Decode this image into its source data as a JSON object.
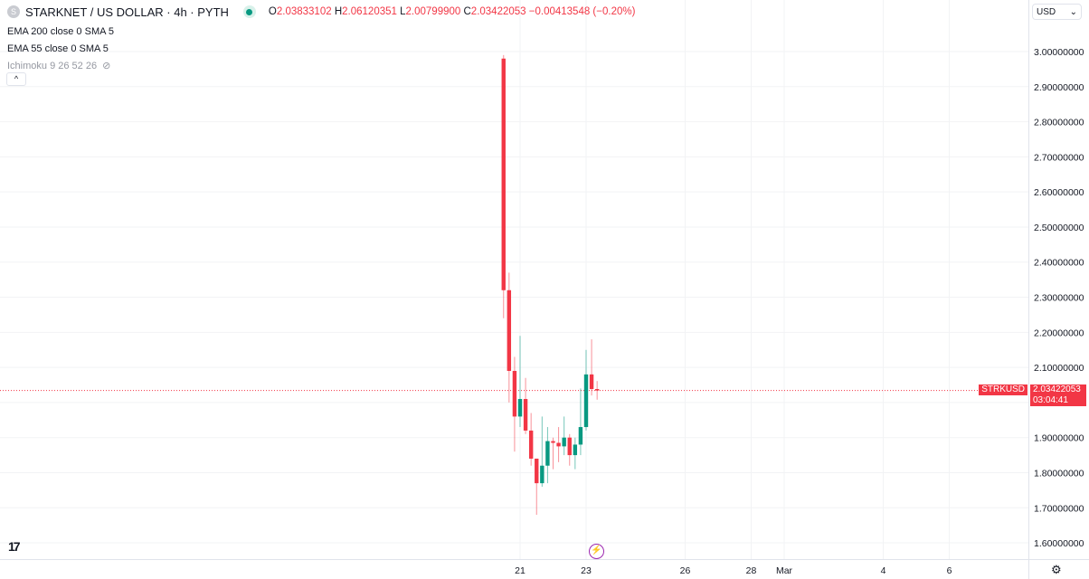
{
  "header": {
    "symbol_icon": "S",
    "title": "STARKNET / US DOLLAR · 4h · PYTH",
    "market_status": "open",
    "open_label": "O",
    "open": "2.03833102",
    "high_label": "H",
    "high": "2.06120351",
    "low_label": "L",
    "low": "2.00799900",
    "close_label": "C",
    "close": "2.03422053",
    "change": "−0.00413548 (−0.20%)"
  },
  "indicators": [
    "EMA 200 close 0 SMA 5",
    "EMA 55 close 0 SMA 5",
    "Ichimoku 9 26 52 26"
  ],
  "currency": "USD",
  "price_tag": {
    "symbol": "STRKUSD",
    "price": "2.03422053",
    "countdown": "03:04:41"
  },
  "colors": {
    "up": "#089981",
    "down": "#f23645",
    "accent": "#9c27b0"
  },
  "chart_data": {
    "type": "candlestick",
    "interval": "4h",
    "ylim": [
      1.55,
      3.05
    ],
    "y_ticks": [
      "3.00000000",
      "2.90000000",
      "2.80000000",
      "2.70000000",
      "2.60000000",
      "2.50000000",
      "2.40000000",
      "2.30000000",
      "2.20000000",
      "2.10000000",
      "2.00000000",
      "1.90000000",
      "1.80000000",
      "1.70000000",
      "1.60000000"
    ],
    "x_ticks": [
      {
        "label": "21",
        "day": 21
      },
      {
        "label": "23",
        "day": 23
      },
      {
        "label": "26",
        "day": 26
      },
      {
        "label": "28",
        "day": 28
      },
      {
        "label": "Mar",
        "day": 29
      },
      {
        "label": "4",
        "day": 32
      },
      {
        "label": "6",
        "day": 34
      }
    ],
    "first_candle_day": 20.5,
    "candles": [
      [
        2.98,
        2.99,
        2.24,
        2.32
      ],
      [
        2.32,
        2.37,
        2.0,
        2.09
      ],
      [
        2.09,
        2.13,
        1.86,
        1.96
      ],
      [
        1.96,
        2.19,
        1.93,
        2.01
      ],
      [
        2.01,
        2.07,
        1.91,
        1.92
      ],
      [
        1.92,
        1.97,
        1.82,
        1.84
      ],
      [
        1.84,
        1.84,
        1.68,
        1.77
      ],
      [
        1.77,
        1.96,
        1.76,
        1.82
      ],
      [
        1.82,
        1.93,
        1.77,
        1.89
      ],
      [
        1.89,
        1.9,
        1.81,
        1.885
      ],
      [
        1.885,
        1.93,
        1.83,
        1.875
      ],
      [
        1.875,
        1.96,
        1.85,
        1.9
      ],
      [
        1.9,
        1.91,
        1.82,
        1.85
      ],
      [
        1.85,
        1.9,
        1.81,
        1.88
      ],
      [
        1.88,
        2.04,
        1.85,
        1.93
      ],
      [
        1.93,
        2.15,
        1.92,
        2.08
      ],
      [
        2.08,
        2.18,
        2.02,
        2.0383
      ],
      [
        2.03833102,
        2.06120351,
        2.007999,
        2.03422053
      ]
    ],
    "last_price": 2.03422053
  }
}
